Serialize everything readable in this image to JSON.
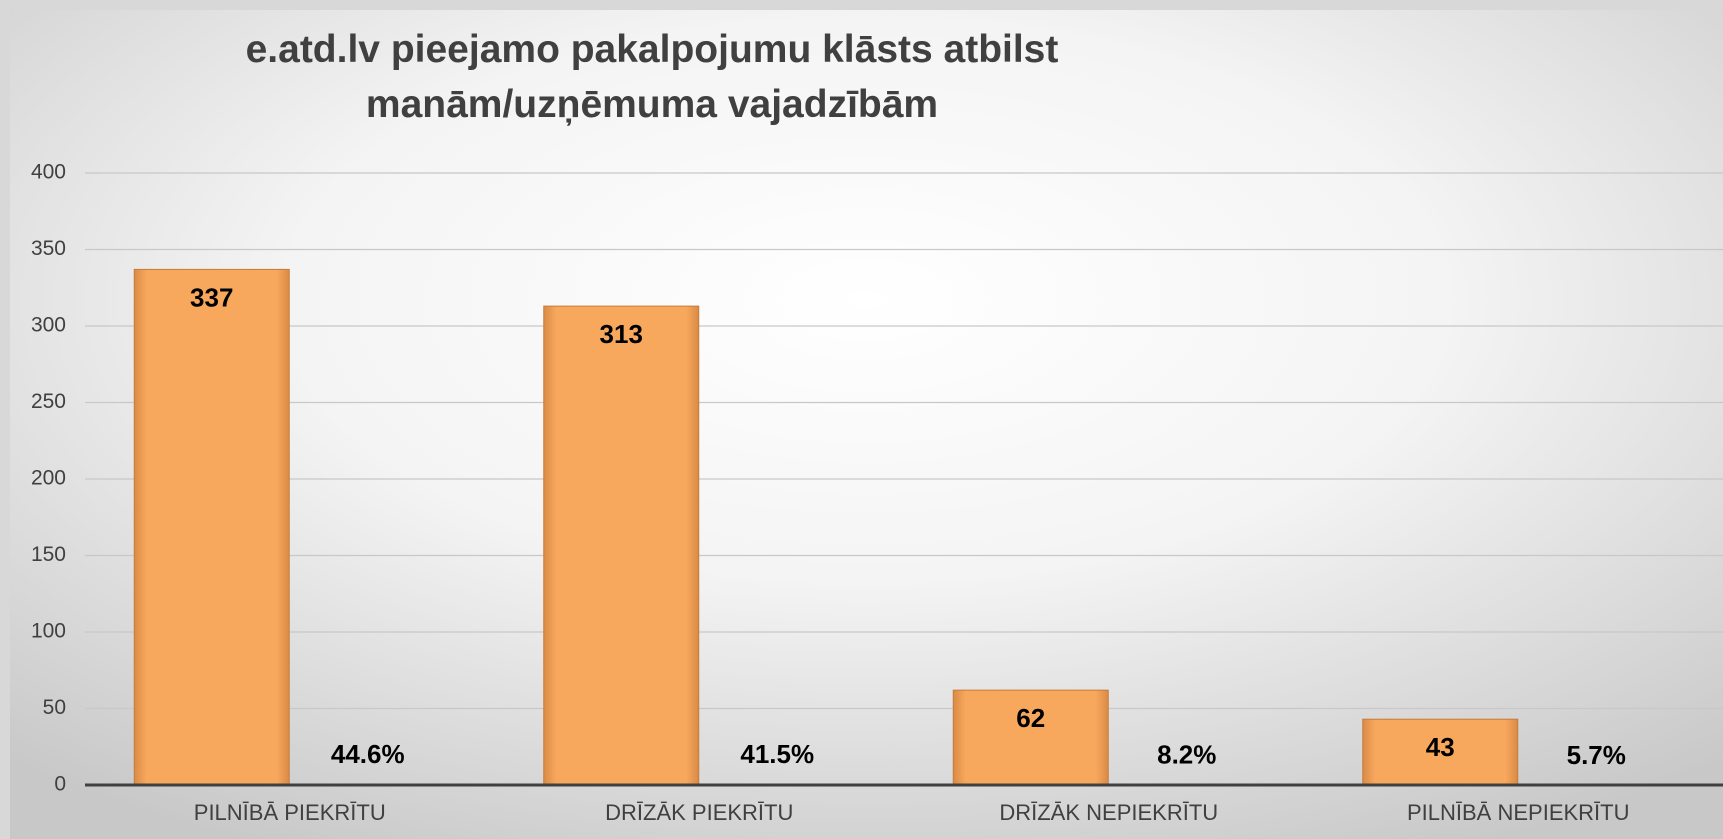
{
  "chart_data": {
    "type": "bar",
    "title": "e.atd.lv pieejamo pakalpojumu klāsts atbilst manām/uzņēmuma vajadzībām",
    "categories": [
      "PILNĪBĀ PIEKRĪTU",
      "DRĪZĀK PIEKRĪTU",
      "DRĪZĀK NEPIEKRĪTU",
      "PILNĪBĀ NEPIEKRĪTU"
    ],
    "series": [
      {
        "color": "#f8a85d",
        "values": [
          337,
          313,
          62,
          43
        ]
      },
      {
        "values": [
          0.446,
          0.415,
          0.082,
          0.057
        ],
        "value_labels": [
          "44.6%",
          "41.5%",
          "8.2%",
          "5.7%"
        ]
      }
    ],
    "ylim": [
      0,
      400
    ],
    "yticks": [
      0,
      50,
      100,
      150,
      200,
      250,
      300,
      350,
      400
    ],
    "grid": true
  }
}
